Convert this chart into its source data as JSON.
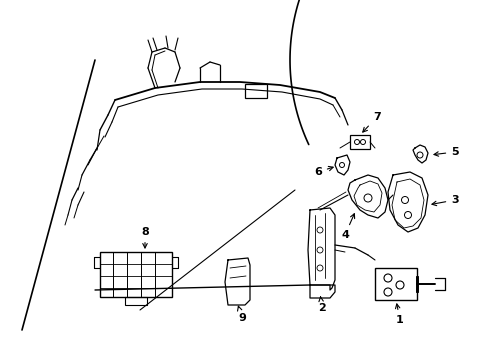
{
  "bg_color": "#ffffff",
  "line_color": "#000000",
  "figsize": [
    4.89,
    3.6
  ],
  "dpi": 100,
  "label_fontsize": 8,
  "lw_main": 1.0,
  "lw_thin": 0.6
}
